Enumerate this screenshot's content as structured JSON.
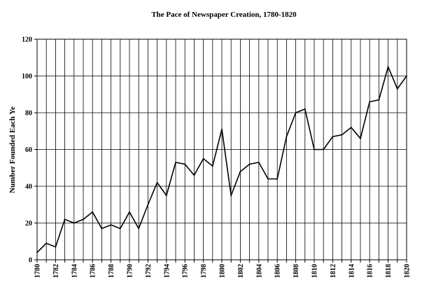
{
  "chart_data": {
    "type": "line",
    "title": "The Pace of Newspaper Creation, 1780-1820",
    "xlabel": "",
    "ylabel": "Number Founded Each Ye",
    "xlim": [
      1780,
      1820
    ],
    "ylim": [
      0,
      120
    ],
    "yticks": [
      0,
      20,
      40,
      60,
      80,
      100,
      120
    ],
    "xtick_labels": [
      "1780",
      "1782",
      "1784",
      "1786",
      "1788",
      "1790",
      "1792",
      "1794",
      "1796",
      "1798",
      "1800",
      "1802",
      "1804",
      "1806",
      "1808",
      "1810",
      "1812",
      "1814",
      "1816",
      "1818",
      "1820"
    ],
    "grid": true,
    "legend": "none",
    "colors": {
      "line": "#000000",
      "grid": "#000000",
      "background": "#ffffff"
    },
    "x": [
      1780,
      1781,
      1782,
      1783,
      1784,
      1785,
      1786,
      1787,
      1788,
      1789,
      1790,
      1791,
      1792,
      1793,
      1794,
      1795,
      1796,
      1797,
      1798,
      1799,
      1800,
      1801,
      1802,
      1803,
      1804,
      1805,
      1806,
      1807,
      1808,
      1809,
      1810,
      1811,
      1812,
      1813,
      1814,
      1815,
      1816,
      1817,
      1818,
      1819,
      1820
    ],
    "series": [
      {
        "values": [
          4,
          9,
          7,
          22,
          20,
          22,
          26,
          17,
          19,
          17,
          26,
          17,
          30,
          42,
          35,
          53,
          52,
          46,
          55,
          51,
          71,
          35,
          48,
          52,
          53,
          44,
          44,
          67,
          80,
          82,
          60,
          60,
          67,
          68,
          72,
          66,
          86,
          87,
          105,
          93,
          100
        ]
      }
    ]
  }
}
